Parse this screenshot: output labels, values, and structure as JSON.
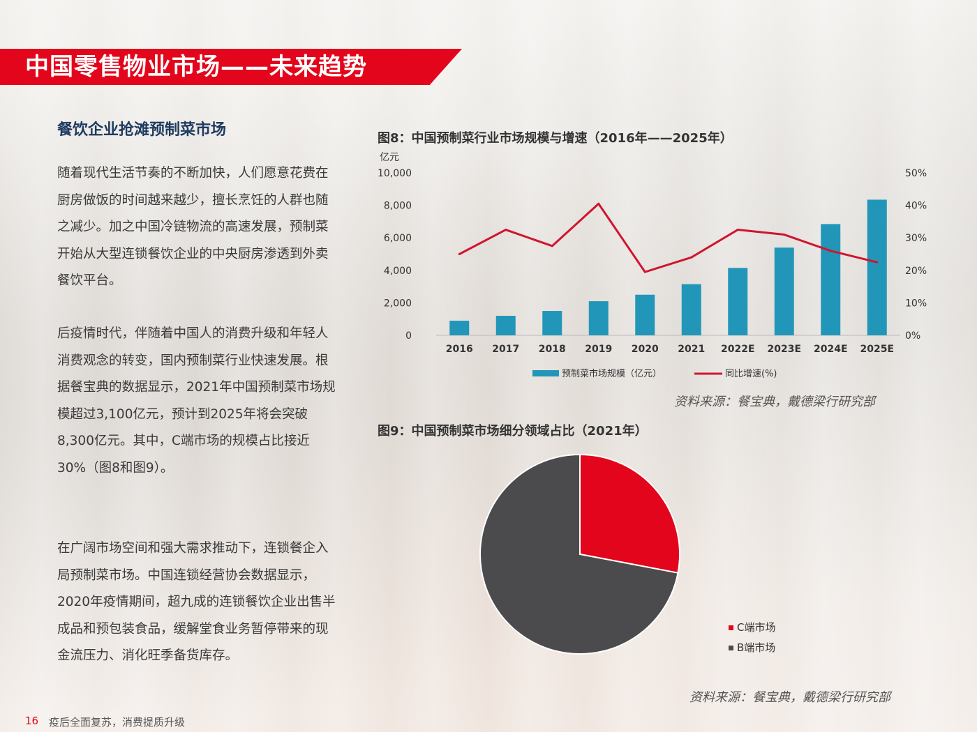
{
  "header": {
    "title": "中国零售物业市场——未来趋势"
  },
  "article": {
    "heading": "餐饮企业抢滩预制菜市场",
    "paragraphs": [
      "随着现代生活节奏的不断加快，人们愿意花费在厨房做饭的时间越来越少，擅长烹饪的人群也随之减少。加之中国冷链物流的高速发展，预制菜开始从大型连锁餐饮企业的中央厨房渗透到外卖餐饮平台。",
      "后疫情时代，伴随着中国人的消费升级和年轻人消费观念的转变，国内预制菜行业快速发展。根据餐宝典的数据显示，2021年中国预制菜市场规模超过3,100亿元，预计到2025年将会突破8,300亿元。其中，C端市场的规模占比接近30%（图8和图9）。",
      "在广阔市场空间和强大需求推动下，连锁餐企入局预制菜市场。中国连锁经营协会数据显示，2020年疫情期间，超九成的连锁餐饮企业出售半成品和预包装食品，缓解堂食业务暂停带来的现金流压力、消化旺季备货库存。"
    ]
  },
  "figures": {
    "fig8_title": "图8：中国预制菜行业市场规模与增速（2016年——2025年）",
    "fig8_source": "资料来源：餐宝典，戴德梁行研究部",
    "fig9_title": "图9：中国预制菜市场细分领域占比（2021年）",
    "fig9_source": "资料来源：餐宝典，戴德梁行研究部"
  },
  "footer": {
    "page_number": "16",
    "text": "疫后全面复苏，消费提质升级"
  },
  "colors": {
    "accent": "#e3051b",
    "bar": "#2296b8",
    "line": "#d0152e",
    "pie_c": "#e3051b",
    "pie_b": "#4b4b4d"
  },
  "chart_data": [
    {
      "type": "bar",
      "categories": [
        "2016",
        "2017",
        "2018",
        "2019",
        "2020",
        "2021",
        "2022E",
        "2023E",
        "2024E",
        "2025E"
      ],
      "series": [
        {
          "name": "预制菜市场规模（亿元）",
          "type": "bar",
          "axis": "left",
          "values": [
            900,
            1200,
            1500,
            2100,
            2500,
            3150,
            4150,
            5400,
            6850,
            8350
          ]
        },
        {
          "name": "同比增速(%)",
          "type": "line",
          "axis": "right",
          "values": [
            25,
            32.5,
            27.5,
            40.5,
            19.5,
            24,
            32.5,
            31,
            26,
            22.5
          ]
        }
      ],
      "ylabel": "亿元",
      "ylim": [
        0,
        10000
      ],
      "yticks": [
        "10,000",
        "8,000",
        "6,000",
        "4,000",
        "2,000",
        "0"
      ],
      "y2lim": [
        0,
        50
      ],
      "y2ticks": [
        "50%",
        "40%",
        "30%",
        "20%",
        "10%",
        "0%"
      ],
      "legend": "bottom",
      "grid": false
    },
    {
      "type": "pie",
      "labels": [
        "C端市场",
        "B端市场"
      ],
      "values": [
        28,
        72
      ],
      "legend": "bottom-right"
    }
  ]
}
